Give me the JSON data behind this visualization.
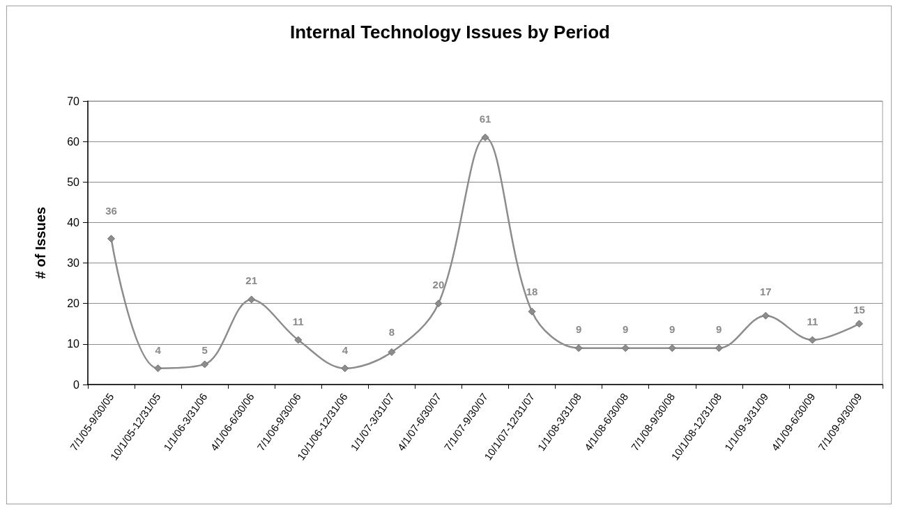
{
  "chart_data": {
    "type": "line",
    "title": "Internal Technology Issues by Period",
    "ylabel": "# of Issues",
    "categories": [
      "7/1/05-9/30/05",
      "10/1/05-12/31/05",
      "1/1/06-3/31/06",
      "4/1/06-6/30/06",
      "7/1/06-9/30/06",
      "10/1/06-12/31/06",
      "1/1/07-3/31/07",
      "4/1/07-6/30/07",
      "7/1/07-9/30/07",
      "10/1/07-12/31/07",
      "1/1/08-3/31/08",
      "4/1/08-6/30/08",
      "7/1/08-9/30/08",
      "10/1/08-12/31/08",
      "1/1/09-3/31/09",
      "4/1/09-6/30/09",
      "7/1/09-9/30/09"
    ],
    "values": [
      36,
      4,
      5,
      21,
      11,
      4,
      8,
      20,
      61,
      18,
      9,
      9,
      9,
      9,
      17,
      11,
      15
    ],
    "color": "#8c8c8c",
    "ylim": [
      0,
      70
    ],
    "yticks": [
      0,
      10,
      20,
      30,
      40,
      50,
      60,
      70
    ],
    "grid": "y",
    "marker": "diamond",
    "line_style": "solid",
    "data_labels": true
  }
}
